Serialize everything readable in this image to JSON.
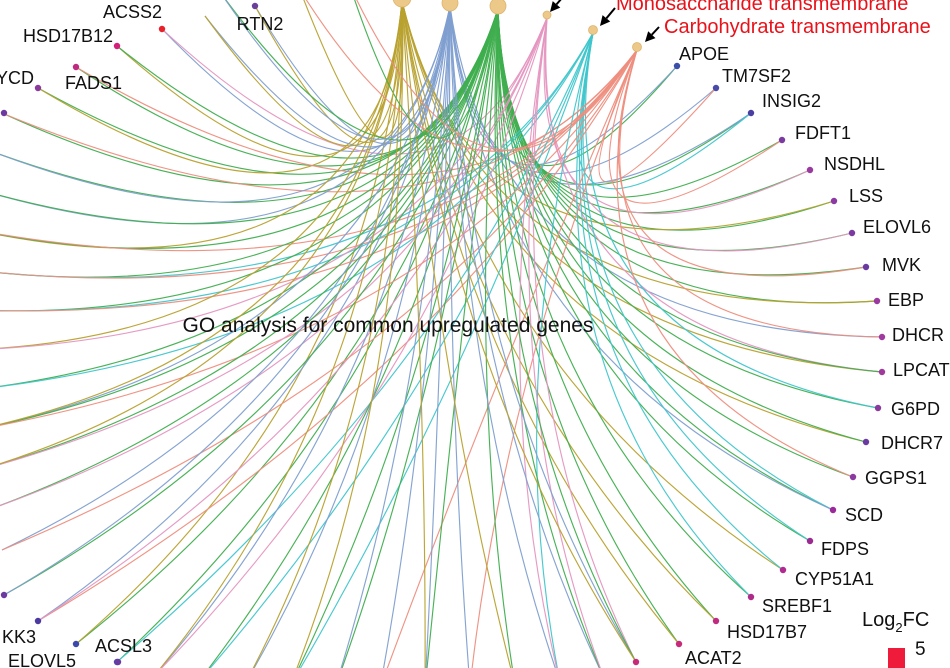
{
  "title": "GO analysis for common upregulated genes",
  "terms": [
    {
      "id": "t1",
      "label": "",
      "color": "#b8a12e"
    },
    {
      "id": "t2",
      "label": "",
      "color": "#7f9fd0"
    },
    {
      "id": "t3",
      "label": "",
      "color": "#3fae4e"
    },
    {
      "id": "t4",
      "label": "",
      "color": "#e596c0"
    },
    {
      "id": "t5",
      "label": "Monosaccharide transmembrane",
      "color": "#3fc6cc"
    },
    {
      "id": "t6",
      "label": "Carbohydrate transmembrane",
      "color": "#ee8e7e"
    }
  ],
  "term_label_color": "#e8121a",
  "genes": [
    {
      "name": "ACSS2",
      "color": "#e8202a"
    },
    {
      "name": "HSD17B12",
      "color": "#d4207a"
    },
    {
      "name": "RTN2",
      "color": "#6a3f9a"
    },
    {
      "name": "YCD",
      "color": "#8a3a9a"
    },
    {
      "name": "FADS1",
      "color": "#c02a7e"
    },
    {
      "name": "APOE",
      "color": "#3b4ea8"
    },
    {
      "name": "TM7SF2",
      "color": "#4a4aa8"
    },
    {
      "name": "INSIG2",
      "color": "#4a3fa0"
    },
    {
      "name": "FDFT1",
      "color": "#7a3aa0"
    },
    {
      "name": "NSDHL",
      "color": "#9a3aa0"
    },
    {
      "name": "LSS",
      "color": "#8a3aa0"
    },
    {
      "name": "ELOVL6",
      "color": "#7a3aa0"
    },
    {
      "name": "MVK",
      "color": "#6a3aa0"
    },
    {
      "name": "EBP",
      "color": "#9a3aa0"
    },
    {
      "name": "DHCR",
      "color": "#a03aa0"
    },
    {
      "name": "LPCAT",
      "color": "#a03a9a"
    },
    {
      "name": "G6PD",
      "color": "#8a3a9a"
    },
    {
      "name": "DHCR7",
      "color": "#6a3aa0"
    },
    {
      "name": "GGPS1",
      "color": "#8a3aa0"
    },
    {
      "name": "SCD",
      "color": "#9a2a9a"
    },
    {
      "name": "FDPS",
      "color": "#9a2a90"
    },
    {
      "name": "CYP51A1",
      "color": "#b02a90"
    },
    {
      "name": "SREBF1",
      "color": "#b02a8a"
    },
    {
      "name": "HSD17B7",
      "color": "#c02a80"
    },
    {
      "name": "ACAT2",
      "color": "#c82a7a"
    },
    {
      "name": "ACSL3",
      "color": "#3a4aa8"
    },
    {
      "name": "ELOVL5",
      "color": "#4a4ab0"
    },
    {
      "name": "KK3",
      "color": "#4a3aa0"
    }
  ],
  "legend": {
    "title": "Log",
    "subscript": "2",
    "title_suffix": "FC",
    "value": "5",
    "color": "#ee1c3a"
  }
}
